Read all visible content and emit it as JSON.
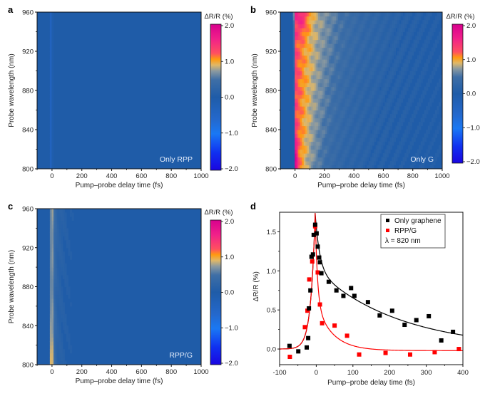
{
  "chart_data": [
    {
      "panel": "a",
      "type": "heatmap",
      "title": "",
      "inset_label": "Only RPP",
      "xlabel": "Pump–probe delay time (fs)",
      "ylabel": "Probe wavelength (nm)",
      "xlim": [
        -100,
        1000
      ],
      "ylim": [
        800,
        960
      ],
      "xticks": [
        0,
        200,
        400,
        600,
        800,
        1000
      ],
      "yticks": [
        800,
        840,
        880,
        920,
        960
      ],
      "colorbar": {
        "title": "ΔR/R (%)",
        "range": [
          -2.0,
          2.0
        ],
        "ticks": [
          "2.0",
          "1.0",
          "0.0",
          "−1.0",
          "−2.0"
        ]
      },
      "features": [
        {
          "description": "weak negative signal stripe near time zero across all wavelengths",
          "t_fs": -5,
          "value_pct": -0.4
        }
      ],
      "background_value_pct": 0.0
    },
    {
      "panel": "b",
      "type": "heatmap",
      "inset_label": "Only G",
      "xlabel": "Pump–probe delay time (fs)",
      "ylabel": "Probe wavelength (nm)",
      "xlim": [
        -100,
        1000
      ],
      "ylim": [
        800,
        960
      ],
      "xticks": [
        0,
        200,
        400,
        600,
        800,
        1000
      ],
      "yticks": [
        800,
        840,
        880,
        920,
        960
      ],
      "colorbar": {
        "title": "ΔR/R (%)",
        "range": [
          -2.0,
          2.0
        ],
        "ticks": [
          "2.0",
          "1.0",
          "0.0",
          "−1.0",
          "−2.0"
        ]
      },
      "features": [
        {
          "description": "strong positive signal onset at t≈0 with slow decay out to ~400 fs",
          "t_fs": 0,
          "value_pct": 1.2,
          "decay_fs": 150
        },
        {
          "description": "peak near 950 nm",
          "wavelength_nm": 950,
          "t_fs": 50,
          "value_pct": 1.6
        },
        {
          "description": "peak near 800-830 nm",
          "wavelength_nm": 815,
          "t_fs": 5,
          "value_pct": 1.8
        }
      ],
      "background_value_pct": 0.0
    },
    {
      "panel": "c",
      "type": "heatmap",
      "inset_label": "RPP/G",
      "xlabel": "Pump–probe delay time (fs)",
      "ylabel": "Probe wavelength (nm)",
      "xlim": [
        -100,
        1000
      ],
      "ylim": [
        800,
        960
      ],
      "xticks": [
        0,
        200,
        400,
        600,
        800,
        1000
      ],
      "yticks": [
        800,
        840,
        880,
        920,
        960
      ],
      "colorbar": {
        "title": "ΔR/R (%)",
        "range": [
          -2.0,
          2.0
        ],
        "ticks": [
          "2.0",
          "1.0",
          "0.0",
          "−1.0",
          "−2.0"
        ]
      },
      "features": [
        {
          "description": "narrow positive signal at t≈0, fast decay (<100 fs)",
          "t_fs": 0,
          "value_pct": 1.3,
          "decay_fs": 25
        },
        {
          "description": "strongest at short wavelengths 800-870 nm",
          "wavelength_nm": 830,
          "value_pct": 1.6
        }
      ],
      "background_value_pct": 0.0
    },
    {
      "panel": "d",
      "type": "scatter",
      "xlabel": "Pump–probe delay time (fs)",
      "ylabel": "ΔR/R (%)",
      "xlim": [
        -100,
        400
      ],
      "ylim": [
        -0.2,
        1.75
      ],
      "xticks": [
        -100,
        0,
        100,
        200,
        300,
        400
      ],
      "yticks": [
        0.0,
        0.5,
        1.0,
        1.5
      ],
      "legend": {
        "position": "top-right",
        "entries": [
          "Only graphene",
          "RPP/G"
        ],
        "annotation": "λ = 820 nm"
      },
      "series": [
        {
          "name": "Only graphene",
          "color": "#000000",
          "x": [
            -73,
            -49,
            -26,
            -22,
            -20,
            -16,
            -13,
            -9,
            -7,
            -3,
            1,
            4,
            8,
            10,
            14,
            34,
            55,
            74,
            95,
            104,
            141,
            173,
            207,
            241,
            273,
            307,
            341,
            373
          ],
          "y": [
            0.04,
            -0.03,
            0.02,
            0.14,
            0.52,
            0.75,
            1.18,
            1.21,
            1.46,
            1.59,
            1.48,
            1.31,
            1.17,
            1.11,
            0.97,
            0.86,
            0.75,
            0.68,
            0.78,
            0.68,
            0.6,
            0.43,
            0.49,
            0.31,
            0.37,
            0.42,
            0.11,
            0.22
          ],
          "fit": {
            "peak_t": -3,
            "peak_v": 1.74,
            "rise_tau_fs": 12,
            "fast_amp": 0.7,
            "fast_tau_fs": 12,
            "slow_amp": 1.0,
            "slow_tau_fs": 230
          }
        },
        {
          "name": "RPP/G",
          "color": "#ff0000",
          "x": [
            -72,
            -31,
            -24,
            -19,
            -11,
            -3,
            4,
            10,
            16,
            50,
            84,
            117,
            189,
            256,
            323,
            389
          ],
          "y": [
            -0.1,
            0.28,
            0.49,
            0.89,
            1.12,
            1.57,
            0.98,
            0.57,
            0.33,
            0.3,
            0.17,
            -0.07,
            -0.05,
            -0.07,
            -0.04,
            0.0
          ],
          "fit": {
            "peak_t": -3,
            "peak_v": 1.74,
            "rise_tau_fs": 12,
            "fast_amp": 1.15,
            "fast_tau_fs": 6,
            "slow_amp": 0.62,
            "slow_tau_fs": 45,
            "offset": -0.02
          }
        }
      ]
    }
  ]
}
